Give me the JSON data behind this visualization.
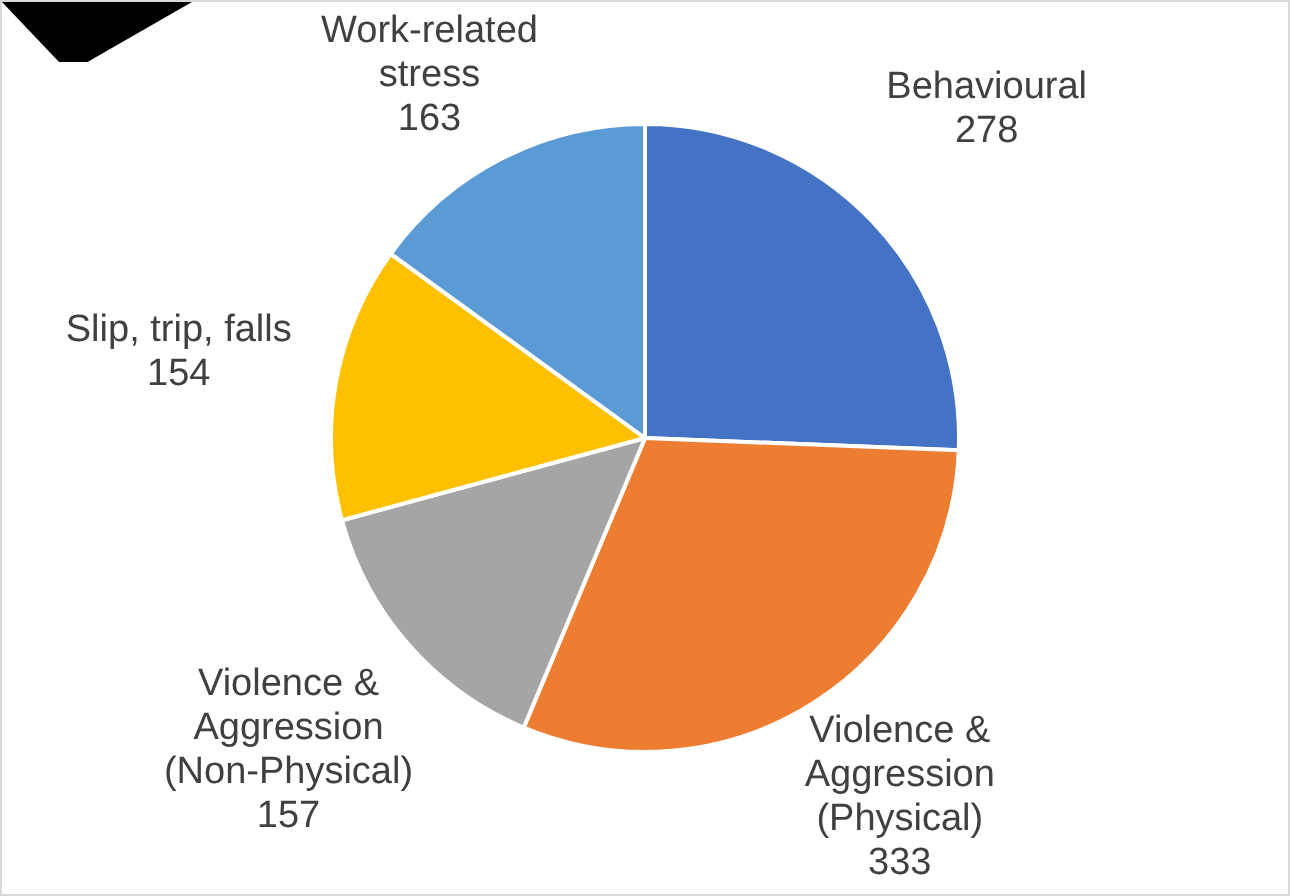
{
  "chart_data": {
    "type": "pie",
    "categories": [
      "Behavioural",
      "Violence & Aggression (Physical)",
      "Violence & Aggression (Non-Physical)",
      "Slip, trip, falls",
      "Work-related stress"
    ],
    "values": [
      278,
      333,
      157,
      154,
      163
    ],
    "colors": [
      "#4472c4",
      "#ed7d31",
      "#a5a5a5",
      "#ffc000",
      "#5b9bd5"
    ],
    "data_labels": true,
    "legend": false
  }
}
